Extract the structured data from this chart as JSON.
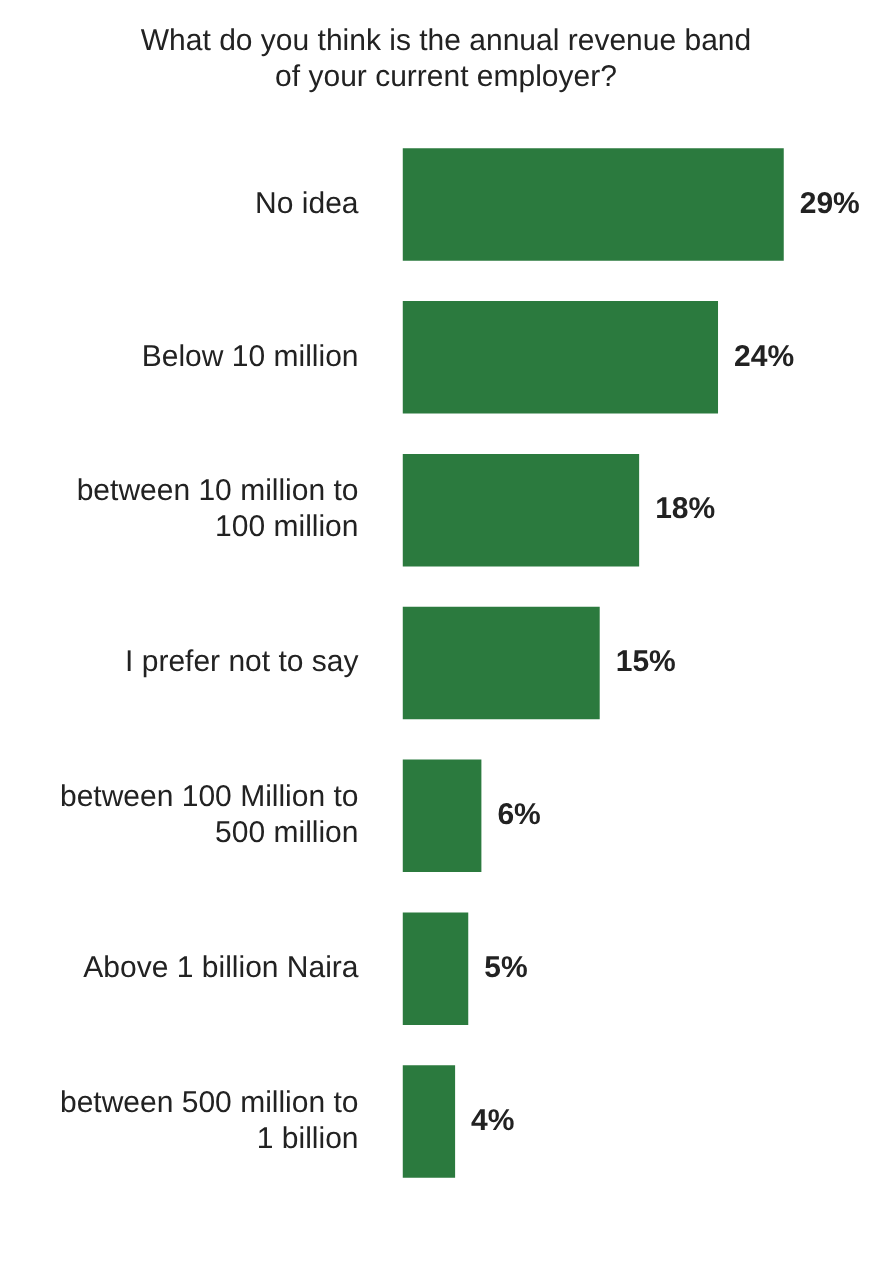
{
  "chart_data": {
    "type": "bar",
    "orientation": "horizontal",
    "title": "What do you think is the annual revenue band of your current employer?",
    "categories": [
      "No idea",
      "Below 10 million",
      "between 10 million to 100 million",
      "I prefer not to say",
      "between 100 Million to 500 million",
      "Above 1 billion Naira",
      "between 500 million to 1 billion"
    ],
    "values": [
      29,
      24,
      18,
      15,
      6,
      5,
      4
    ],
    "value_labels": [
      "29%",
      "24%",
      "18%",
      "15%",
      "6%",
      "5%",
      "4%"
    ],
    "color": "#2b7a3e"
  }
}
